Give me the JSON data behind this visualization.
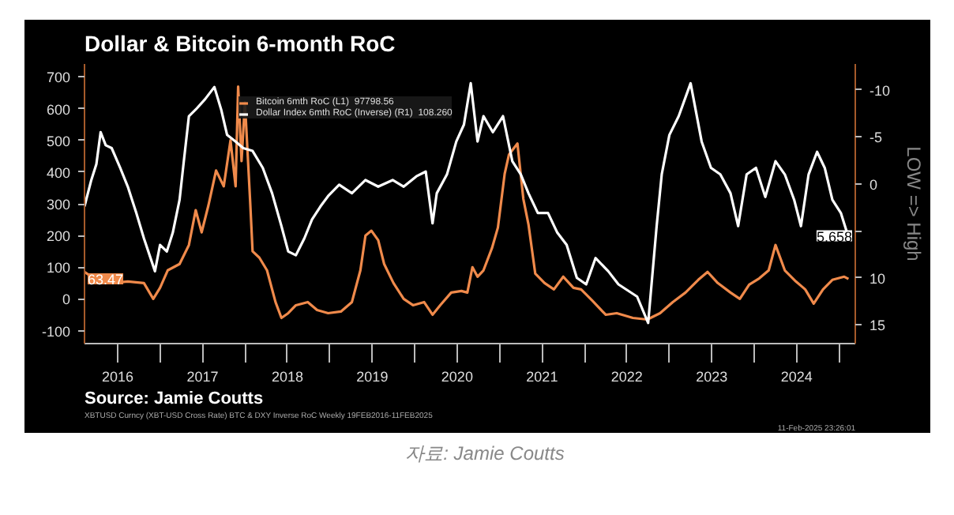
{
  "chart_data": {
    "type": "line",
    "title": "Dollar & Bitcoin 6-month RoC",
    "y2label": "LOW => High",
    "xlim": [
      2016.11,
      2025.19
    ],
    "xticks": [
      {
        "value": 2016.5,
        "label": "2016"
      },
      {
        "value": 2017,
        "label": null
      },
      {
        "value": 2017.5,
        "label": "2017"
      },
      {
        "value": 2018,
        "label": null
      },
      {
        "value": 2018.5,
        "label": "2018"
      },
      {
        "value": 2019,
        "label": null
      },
      {
        "value": 2019.5,
        "label": "2019"
      },
      {
        "value": 2020,
        "label": null
      },
      {
        "value": 2020.5,
        "label": "2020"
      },
      {
        "value": 2021,
        "label": null
      },
      {
        "value": 2021.5,
        "label": "2021"
      },
      {
        "value": 2022,
        "label": null
      },
      {
        "value": 2022.5,
        "label": "2022"
      },
      {
        "value": 2023,
        "label": null
      },
      {
        "value": 2023.5,
        "label": "2023"
      },
      {
        "value": 2024,
        "label": null
      },
      {
        "value": 2024.5,
        "label": "2024"
      },
      {
        "value": 2025,
        "label": null
      }
    ],
    "ylim": [
      -141,
      741
    ],
    "yticks": [
      -100,
      0,
      100,
      200,
      300,
      400,
      500,
      600,
      700
    ],
    "y2lim": [
      17,
      -12.75
    ],
    "y2ticks": [
      -10,
      -5,
      0,
      {
        "value": 5,
        "label": null
      },
      10,
      15
    ],
    "legend": "top",
    "grid": false,
    "series": [
      {
        "name": "Bitcoin 6mth RoC (L1)  97798.56",
        "color": "#f08a4b",
        "x": [
          2016.11,
          2016.25,
          2016.43,
          2016.62,
          2016.81,
          2016.92,
          2017.0,
          2017.09,
          2017.23,
          2017.34,
          2017.42,
          2017.49,
          2017.57,
          2017.66,
          2017.75,
          2017.83,
          2017.89,
          2017.92,
          2017.96,
          2018.0,
          2018.06,
          2018.09,
          2018.17,
          2018.26,
          2018.36,
          2018.43,
          2018.51,
          2018.6,
          2018.74,
          2018.85,
          2018.98,
          2019.13,
          2019.26,
          2019.36,
          2019.42,
          2019.49,
          2019.57,
          2019.64,
          2019.75,
          2019.87,
          2019.98,
          2020.11,
          2020.21,
          2020.3,
          2020.43,
          2020.55,
          2020.62,
          2020.68,
          2020.74,
          2020.81,
          2020.91,
          2020.98,
          2021.06,
          2021.11,
          2021.21,
          2021.28,
          2021.34,
          2021.42,
          2021.53,
          2021.64,
          2021.75,
          2021.87,
          2021.96,
          2022.09,
          2022.25,
          2022.38,
          2022.57,
          2022.74,
          2022.89,
          2023.04,
          2023.19,
          2023.34,
          2023.45,
          2023.57,
          2023.72,
          2023.83,
          2023.94,
          2024.06,
          2024.17,
          2024.25,
          2024.36,
          2024.49,
          2024.6,
          2024.7,
          2024.81,
          2024.92,
          2025.06,
          2025.11
        ],
        "values": [
          85,
          60,
          50,
          55,
          50,
          0,
          35,
          90,
          110,
          170,
          280,
          210,
          295,
          405,
          355,
          500,
          355,
          670,
          435,
          620,
          315,
          150,
          130,
          90,
          -10,
          -60,
          -45,
          -20,
          -10,
          -35,
          -45,
          -40,
          -10,
          90,
          200,
          215,
          185,
          110,
          50,
          0,
          -20,
          -10,
          -50,
          -20,
          20,
          25,
          20,
          100,
          70,
          90,
          160,
          225,
          395,
          455,
          490,
          315,
          235,
          80,
          50,
          30,
          70,
          35,
          30,
          -5,
          -50,
          -45,
          -60,
          -65,
          -45,
          -10,
          20,
          60,
          85,
          50,
          20,
          0,
          45,
          65,
          90,
          170,
          90,
          55,
          30,
          -15,
          30,
          60,
          70,
          63
        ]
      },
      {
        "name": "Dollar Index 6mth RoC (Inverse) (R1)  108.260",
        "color": "#ffffff",
        "axis": "y2",
        "x": [
          2016.11,
          2016.19,
          2016.25,
          2016.3,
          2016.36,
          2016.43,
          2016.53,
          2016.62,
          2016.72,
          2016.81,
          2016.94,
          2017.0,
          2017.08,
          2017.15,
          2017.23,
          2017.28,
          2017.34,
          2017.42,
          2017.53,
          2017.64,
          2017.72,
          2017.79,
          2017.89,
          2017.98,
          2018.09,
          2018.21,
          2018.32,
          2018.43,
          2018.51,
          2018.6,
          2018.7,
          2018.79,
          2018.89,
          2018.98,
          2019.11,
          2019.26,
          2019.42,
          2019.57,
          2019.74,
          2019.87,
          2020.02,
          2020.13,
          2020.21,
          2020.26,
          2020.38,
          2020.49,
          2020.58,
          2020.66,
          2020.74,
          2020.81,
          2020.92,
          2021.04,
          2021.15,
          2021.25,
          2021.34,
          2021.45,
          2021.57,
          2021.68,
          2021.79,
          2021.91,
          2022.02,
          2022.13,
          2022.28,
          2022.4,
          2022.62,
          2022.75,
          2022.85,
          2022.91,
          2023.0,
          2023.11,
          2023.25,
          2023.38,
          2023.49,
          2023.6,
          2023.72,
          2023.81,
          2023.91,
          2024.02,
          2024.13,
          2024.25,
          2024.36,
          2024.47,
          2024.55,
          2024.64,
          2024.74,
          2024.83,
          2024.92,
          2025.02,
          2025.11
        ],
        "values": [
          2.4,
          -0.4,
          -2.1,
          -5.5,
          -4.1,
          -3.8,
          -1.7,
          0.3,
          3.1,
          5.8,
          9.3,
          6.5,
          7.2,
          5.2,
          1.7,
          -2.4,
          -7.2,
          -7.9,
          -9.0,
          -10.3,
          -7.9,
          -5.2,
          -4.5,
          -3.8,
          -3.5,
          -1.7,
          1.0,
          4.5,
          7.2,
          7.6,
          5.8,
          3.8,
          2.4,
          1.3,
          0.1,
          1.0,
          -0.4,
          0.3,
          -0.4,
          0.3,
          -0.8,
          -1.3,
          4.2,
          1.0,
          -1.0,
          -4.5,
          -6.3,
          -10.7,
          -4.5,
          -7.2,
          -5.5,
          -7.2,
          -2.4,
          -1.0,
          1.0,
          3.1,
          3.1,
          5.2,
          6.5,
          10.0,
          10.7,
          7.9,
          9.3,
          10.7,
          12.0,
          14.8,
          4.5,
          -1.0,
          -5.2,
          -7.2,
          -10.7,
          -4.5,
          -1.7,
          -1.0,
          1.0,
          4.5,
          -1.0,
          -1.7,
          1.4,
          -2.4,
          -1.0,
          1.7,
          4.5,
          -1.0,
          -3.4,
          -1.7,
          1.7,
          3.1,
          5.7
        ]
      }
    ],
    "annotations": [
      "Source: Jamie Coutts",
      "XBTUSD Curncy (XBT-USD Cross Rate) BTC & DXY Inverse RoC Weekly 19FEB2016-11FEB2025",
      "11-Feb-2025 23:26:01",
      "자료: Jamie Coutts",
      {
        "text": "63.47",
        "y": 63.47
      },
      {
        "text": "5.658",
        "y": 199
      }
    ]
  }
}
